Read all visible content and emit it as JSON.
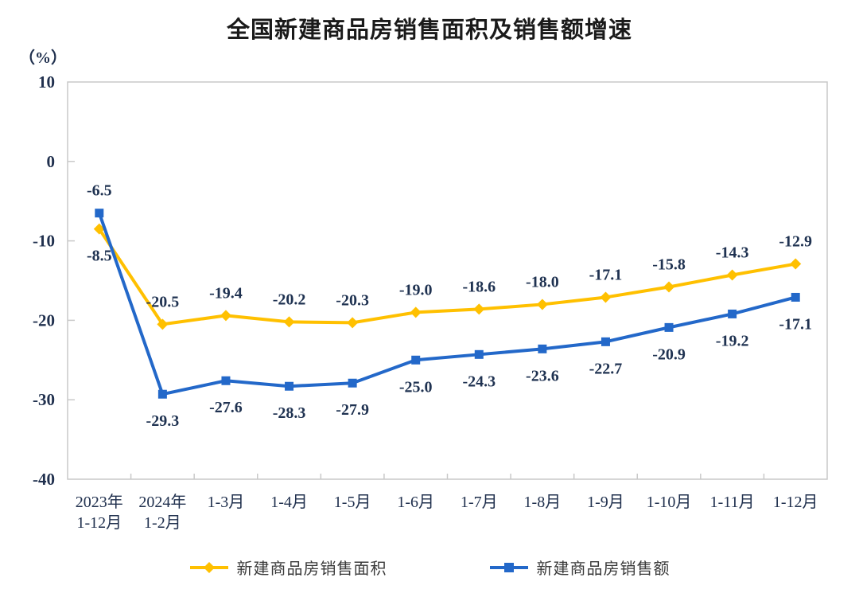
{
  "title": "全国新建商品房销售面积及销售额增速",
  "y_axis_unit": "（%）",
  "chart_data": {
    "type": "line",
    "title": "全国新建商品房销售面积及销售额增速",
    "ylabel": "（%）",
    "xlabel": "",
    "grid": false,
    "legend_position": "bottom",
    "ylim": [
      -40,
      10
    ],
    "yticks": [
      10,
      0,
      -10,
      -20,
      -30,
      -40
    ],
    "categories": [
      "2023年\n1-12月",
      "2024年\n1-2月",
      "1-3月",
      "1-4月",
      "1-5月",
      "1-6月",
      "1-7月",
      "1-8月",
      "1-9月",
      "1-10月",
      "1-11月",
      "1-12月"
    ],
    "series": [
      {
        "name": "新建商品房销售面积",
        "marker": "diamond",
        "color": "#FFC000",
        "values": [
          -8.5,
          -20.5,
          -19.4,
          -20.2,
          -20.3,
          -19.0,
          -18.6,
          -18.0,
          -17.1,
          -15.8,
          -14.3,
          -12.9
        ]
      },
      {
        "name": "新建商品房销售额",
        "marker": "square",
        "color": "#2368C9",
        "values": [
          -6.5,
          -29.3,
          -27.6,
          -28.3,
          -27.9,
          -25.0,
          -24.3,
          -23.6,
          -22.7,
          -20.9,
          -19.2,
          -17.1
        ]
      }
    ],
    "colors": {
      "axis_line": "#c9c9c9",
      "tick_label": "#20304e",
      "data_label": "#1f3251"
    }
  }
}
